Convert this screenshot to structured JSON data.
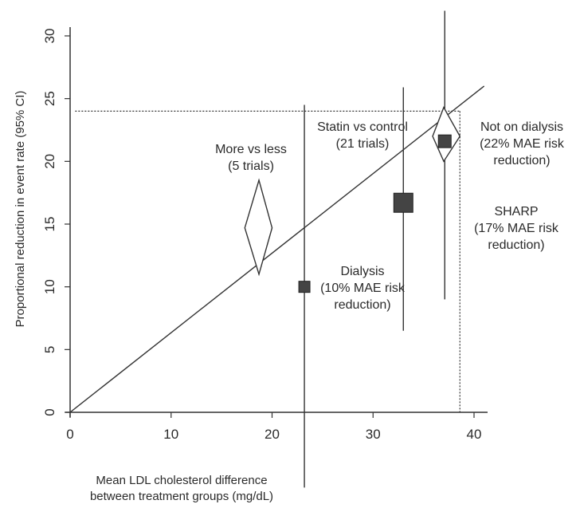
{
  "chart_data": {
    "type": "scatter",
    "xlabel": "Mean LDL cholesterol difference between treatment groups (mg/dL)",
    "xlabel_lines": [
      "Mean LDL cholesterol difference",
      "between treatment groups (mg/dL)"
    ],
    "ylabel": "Proportional reduction in event rate (95% CI)",
    "xlim": [
      0,
      41
    ],
    "ylim": [
      0,
      32
    ],
    "xticks": [
      0,
      10,
      20,
      30,
      40
    ],
    "yticks": [
      0,
      5,
      10,
      15,
      20,
      25,
      30
    ],
    "regression_line": {
      "x": [
        0,
        41
      ],
      "y": [
        0,
        26
      ]
    },
    "reference_lines": {
      "y_value": 24,
      "x_value": 38.6
    },
    "series": [
      {
        "marker": "diamond",
        "points": [
          {
            "x": 18.7,
            "y": 14.7,
            "ci": [
              11,
              18.5
            ],
            "x_range": [
              17.3,
              20
            ],
            "label": [
              "More vs less",
              "(5 trials)"
            ]
          },
          {
            "x": 37,
            "y": 22,
            "ci": [
              20,
              24.3
            ],
            "x_range": [
              35.9,
              38.6
            ],
            "label": [
              "Statin vs control",
              "(21 trials)"
            ]
          }
        ]
      },
      {
        "marker": "square",
        "points": [
          {
            "x": 23.2,
            "y": 10,
            "ci": [
              -6,
              24.5
            ],
            "size": "small",
            "label": [
              "Dialysis",
              "(10% MAE risk",
              "reduction)"
            ]
          },
          {
            "x": 33,
            "y": 16.7,
            "ci": [
              6.5,
              25.9
            ],
            "size": "large",
            "label": [
              "SHARP",
              "(17% MAE risk",
              "reduction)"
            ]
          },
          {
            "x": 37.1,
            "y": 21.6,
            "ci": [
              9,
              32
            ],
            "size": "medium",
            "label": [
              "Not on dialysis",
              "(22% MAE risk",
              "reduction)"
            ]
          }
        ]
      }
    ],
    "grid": false,
    "legend": "none",
    "colors": {
      "line": "#333333",
      "marker_fill": "#444444",
      "diamond_fill": "#ffffff"
    }
  }
}
